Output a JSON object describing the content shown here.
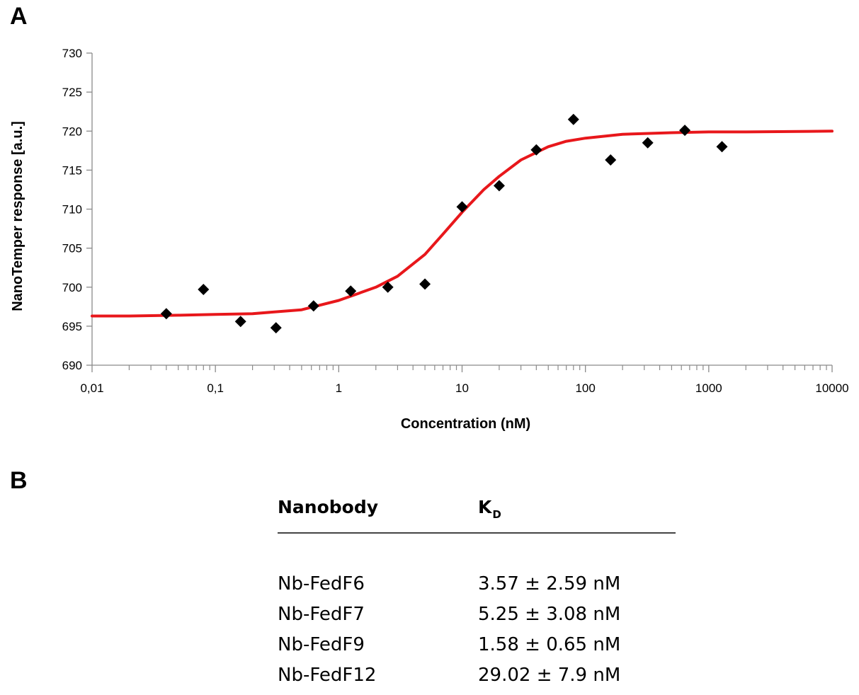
{
  "panels": {
    "a": "A",
    "b": "B"
  },
  "chart_data": {
    "type": "scatter",
    "xscale": "log",
    "xlabel": "Concentration (nM)",
    "ylabel": "NanoTemper response [a.u.]",
    "xlim": [
      0.01,
      10000
    ],
    "ylim": [
      690,
      730
    ],
    "xticks": [
      "0,01",
      "0,1",
      "1",
      "10",
      "100",
      "1000",
      "10000"
    ],
    "yticks": [
      "690",
      "695",
      "700",
      "705",
      "710",
      "715",
      "720",
      "725",
      "730"
    ],
    "grid": false,
    "colors": {
      "points": "#000000",
      "fit": "#e8171b"
    },
    "series": [
      {
        "kind": "points",
        "x": [
          0.04,
          0.08,
          0.16,
          0.31,
          0.625,
          1.25,
          2.5,
          5,
          10,
          20,
          40,
          80,
          160,
          320,
          640,
          1280
        ],
        "y": [
          696.6,
          699.7,
          695.6,
          694.8,
          697.6,
          699.5,
          700.0,
          700.4,
          710.3,
          713.0,
          717.6,
          721.5,
          716.3,
          718.5,
          720.1,
          718.0
        ]
      },
      {
        "kind": "fit",
        "x": [
          0.01,
          0.02,
          0.05,
          0.1,
          0.2,
          0.5,
          1,
          2,
          3,
          5,
          7,
          10,
          15,
          20,
          30,
          50,
          70,
          100,
          200,
          500,
          1000,
          2000,
          10000
        ],
        "y": [
          696.3,
          696.3,
          696.4,
          696.5,
          696.6,
          697.1,
          698.3,
          700.0,
          701.4,
          704.2,
          706.8,
          709.6,
          712.5,
          714.2,
          716.3,
          718.0,
          718.7,
          719.1,
          719.6,
          719.8,
          719.9,
          719.9,
          720.0
        ]
      }
    ]
  },
  "table": {
    "headers": {
      "nanobody": "Nanobody",
      "kd_main": "K",
      "kd_sub": "D"
    },
    "rows": [
      {
        "name": "Nb-FedF6",
        "kd": "3.57 ± 2.59 nM"
      },
      {
        "name": "Nb-FedF7",
        "kd": "5.25 ± 3.08 nM"
      },
      {
        "name": "Nb-FedF9",
        "kd": "1.58 ± 0.65 nM"
      },
      {
        "name": "Nb-FedF12",
        "kd": "29.02 ± 7.9 nM"
      }
    ]
  }
}
